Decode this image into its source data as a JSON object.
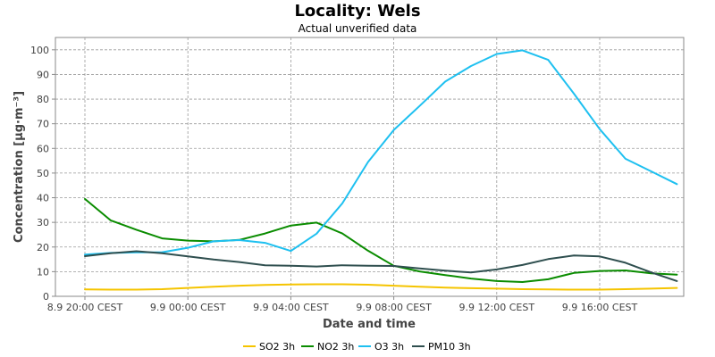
{
  "chart_data": {
    "type": "line",
    "title": "Locality: Wels",
    "subtitle": "Actual unverified data",
    "xlabel": "Date and time",
    "ylabel": "Concentration [µg·m⁻³]",
    "ylim": [
      0,
      105
    ],
    "yticks": [
      0,
      10,
      20,
      30,
      40,
      50,
      60,
      70,
      80,
      90,
      100
    ],
    "x_hours": [
      "8.9 20:00",
      "8.9 21:00",
      "8.9 22:00",
      "8.9 23:00",
      "9.9 00:00",
      "9.9 01:00",
      "9.9 02:00",
      "9.9 03:00",
      "9.9 04:00",
      "9.9 05:00",
      "9.9 06:00",
      "9.9 07:00",
      "9.9 08:00",
      "9.9 09:00",
      "9.9 10:00",
      "9.9 11:00",
      "9.9 12:00",
      "9.9 13:00",
      "9.9 14:00",
      "9.9 15:00",
      "9.9 16:00",
      "9.9 17:00",
      "9.9 18:00",
      "9.9 19:00"
    ],
    "xticks": [
      {
        "label": "8.9 20:00 CEST",
        "index": 0
      },
      {
        "label": "9.9 00:00 CEST",
        "index": 4
      },
      {
        "label": "9.9 04:00 CEST",
        "index": 8
      },
      {
        "label": "9.9 08:00 CEST",
        "index": 12
      },
      {
        "label": "9.9 12:00 CEST",
        "index": 16
      },
      {
        "label": "9.9 16:00 CEST",
        "index": 20
      }
    ],
    "grid": true,
    "legend_position": "bottom-center",
    "series": [
      {
        "name": "SO2 3h",
        "color": "#f5c400",
        "values": [
          2.8,
          2.7,
          2.7,
          2.9,
          3.4,
          3.9,
          4.3,
          4.6,
          4.8,
          4.9,
          4.9,
          4.7,
          4.3,
          3.9,
          3.5,
          3.3,
          3.1,
          2.9,
          2.8,
          2.7,
          2.7,
          2.9,
          3.1,
          3.4
        ]
      },
      {
        "name": "NO2 3h",
        "color": "#0a8c00",
        "values": [
          39.5,
          30.8,
          27.0,
          23.5,
          22.6,
          22.3,
          22.9,
          25.5,
          28.7,
          29.9,
          25.5,
          18.5,
          12.4,
          10.1,
          8.6,
          7.2,
          6.2,
          5.8,
          6.9,
          9.5,
          10.3,
          10.5,
          9.3,
          8.8
        ]
      },
      {
        "name": "O3 3h",
        "color": "#1ec0f0",
        "values": [
          16.9,
          17.6,
          17.8,
          17.9,
          19.7,
          22.3,
          22.8,
          21.7,
          18.4,
          25.4,
          37.7,
          54.5,
          67.5,
          77.2,
          87.1,
          93.4,
          98.3,
          99.8,
          95.9,
          82.2,
          67.8,
          55.8,
          50.7,
          45.5
        ]
      },
      {
        "name": "PM10 3h",
        "color": "#2f4f4f",
        "values": [
          16.3,
          17.5,
          18.3,
          17.5,
          16.2,
          14.9,
          13.9,
          12.6,
          12.4,
          12.1,
          12.6,
          12.4,
          12.3,
          11.3,
          10.4,
          9.7,
          10.9,
          12.7,
          15.1,
          16.6,
          16.2,
          13.6,
          9.7,
          6.2
        ]
      }
    ]
  }
}
